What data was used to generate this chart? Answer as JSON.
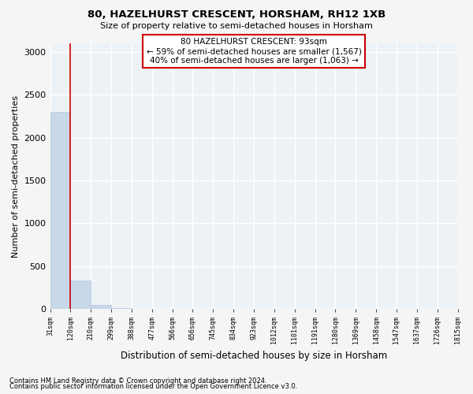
{
  "title": "80, HAZELHURST CRESCENT, HORSHAM, RH12 1XB",
  "subtitle": "Size of property relative to semi-detached houses in Horsham",
  "xlabel": "Distribution of semi-detached houses by size in Horsham",
  "ylabel": "Number of semi-detached properties",
  "bar_values": [
    2300,
    330,
    50,
    8,
    4,
    2,
    1,
    1,
    1,
    1,
    0,
    0,
    0,
    0,
    0,
    0,
    0,
    0,
    0,
    0
  ],
  "bar_color": "#c8d8e8",
  "bar_edge_color": "#b0c8dc",
  "red_line_x": 0.5,
  "x_labels": [
    "31sqm",
    "120sqm",
    "210sqm",
    "299sqm",
    "388sqm",
    "477sqm",
    "566sqm",
    "656sqm",
    "745sqm",
    "834sqm",
    "923sqm",
    "1012sqm",
    "1101sqm",
    "1191sqm",
    "1280sqm",
    "1369sqm",
    "1458sqm",
    "1547sqm",
    "1637sqm",
    "1726sqm",
    "1815sqm"
  ],
  "annotation_text": "80 HAZELHURST CRESCENT: 93sqm\n← 59% of semi-detached houses are smaller (1,567)\n40% of semi-detached houses are larger (1,063) →",
  "annotation_box_color": "#ffffff",
  "annotation_border_color": "#cc0000",
  "ylim": [
    0,
    3100
  ],
  "yticks": [
    0,
    500,
    1000,
    1500,
    2000,
    2500,
    3000
  ],
  "footnote1": "Contains HM Land Registry data © Crown copyright and database right 2024.",
  "footnote2": "Contains public sector information licensed under the Open Government Licence v3.0.",
  "bg_color": "#edf2f7",
  "grid_color": "#ffffff",
  "fig_bg_color": "#f5f5f5"
}
